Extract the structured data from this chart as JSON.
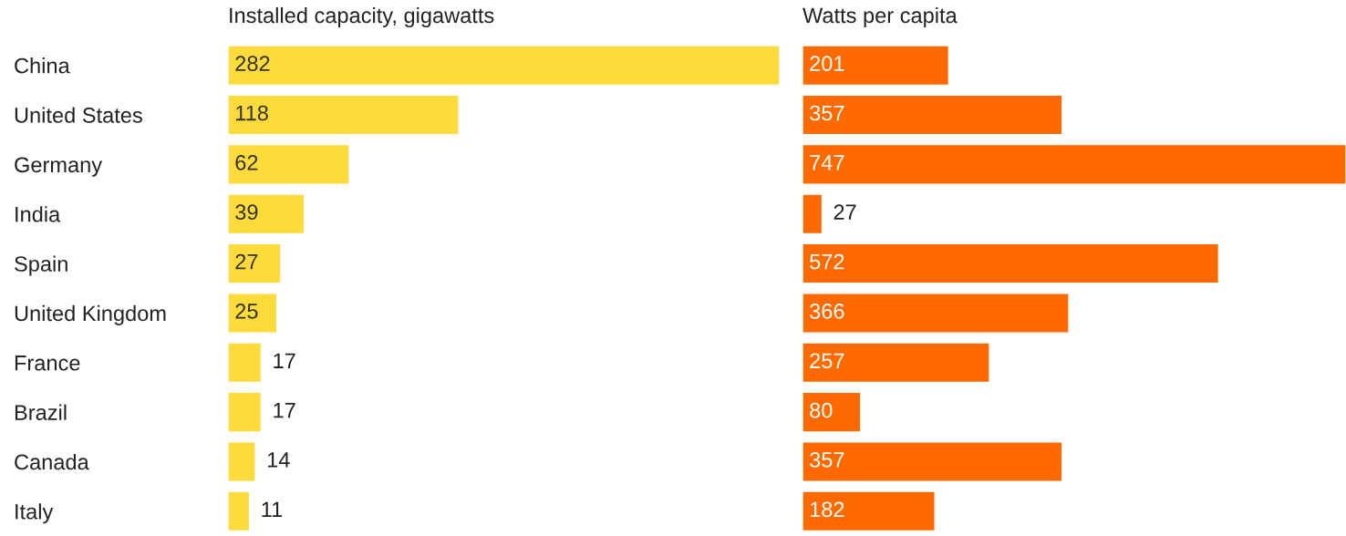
{
  "chart_data": [
    {
      "type": "bar",
      "orientation": "horizontal",
      "title": "Installed capacity, gigawatts",
      "categories": [
        "China",
        "United States",
        "Germany",
        "India",
        "Spain",
        "United Kingdom",
        "France",
        "Brazil",
        "Canada",
        "Italy"
      ],
      "values": [
        282,
        118,
        62,
        39,
        27,
        25,
        17,
        17,
        14,
        11
      ],
      "color": "#fcdb3a",
      "data_labels": true
    },
    {
      "type": "bar",
      "orientation": "horizontal",
      "title": "Watts per capita",
      "categories": [
        null,
        null,
        null,
        null,
        null,
        null,
        null,
        null,
        null,
        null
      ],
      "values": [
        201,
        357,
        747,
        27,
        572,
        366,
        257,
        80,
        357,
        182
      ],
      "color": "#ff6a00",
      "data_labels": true
    }
  ]
}
